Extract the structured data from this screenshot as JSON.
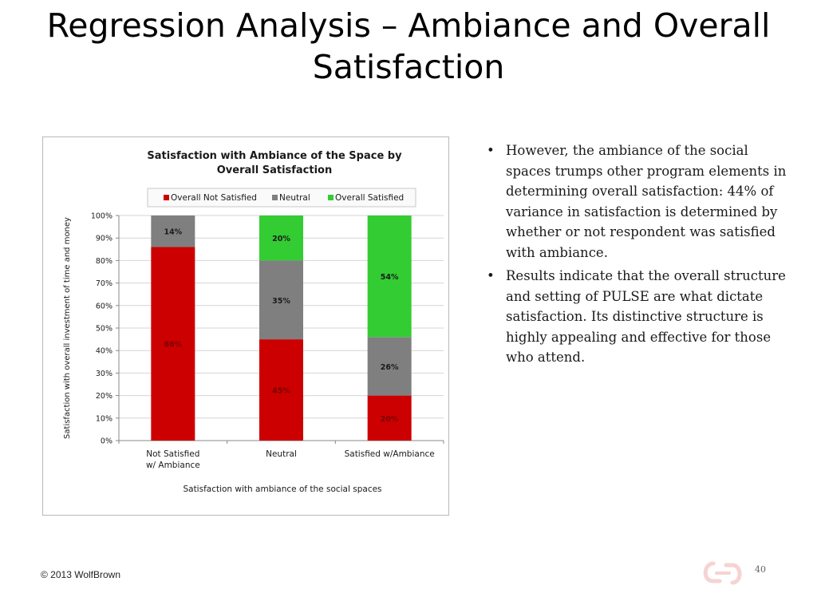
{
  "slide": {
    "title": "Regression Analysis – Ambiance and Overall Satisfaction",
    "bullets": [
      "However, the ambiance of the social spaces trumps other program elements in determining overall satisfaction: 44% of variance in satisfaction is determined by whether or not respondent was satisfied with ambiance.",
      "Results indicate that the overall structure and setting of PULSE are what dictate satisfaction. Its distinctive structure is highly appealing and effective for those who attend."
    ],
    "bullet_symbol": "•",
    "footer": "© 2013 WolfBrown",
    "page_number": "40"
  },
  "chart_data": {
    "type": "bar",
    "stacked": true,
    "title": "Satisfaction with Ambiance of the Space by Overall Satisfaction",
    "xlabel": "Satisfaction with ambiance of the social spaces",
    "ylabel": "Satisfaction with overall investment of time and money",
    "categories": [
      "Not Satisfied w/ Ambiance",
      "Neutral",
      "Satisfied w/Ambiance"
    ],
    "series": [
      {
        "name": "Overall Not Satisfied",
        "values": [
          86,
          45,
          20
        ],
        "labels": [
          "86%",
          "45%",
          "20%"
        ],
        "color": "#cc0000",
        "label_color": "#7a0000"
      },
      {
        "name": "Neutral",
        "values": [
          14,
          35,
          26
        ],
        "labels": [
          "14%",
          "35%",
          "26%"
        ],
        "color": "#7f7f7f",
        "label_color": "#1a1a1a"
      },
      {
        "name": "Overall Satisfied",
        "values": [
          0,
          20,
          54
        ],
        "labels": [
          "",
          "20%",
          "54%"
        ],
        "color": "#33cc33",
        "label_color": "#1a1a1a"
      }
    ],
    "ylim": [
      0,
      100
    ],
    "yticks": [
      "0%",
      "10%",
      "20%",
      "30%",
      "40%",
      "50%",
      "60%",
      "70%",
      "80%",
      "90%",
      "100%"
    ],
    "grid": true,
    "legend": "top"
  }
}
